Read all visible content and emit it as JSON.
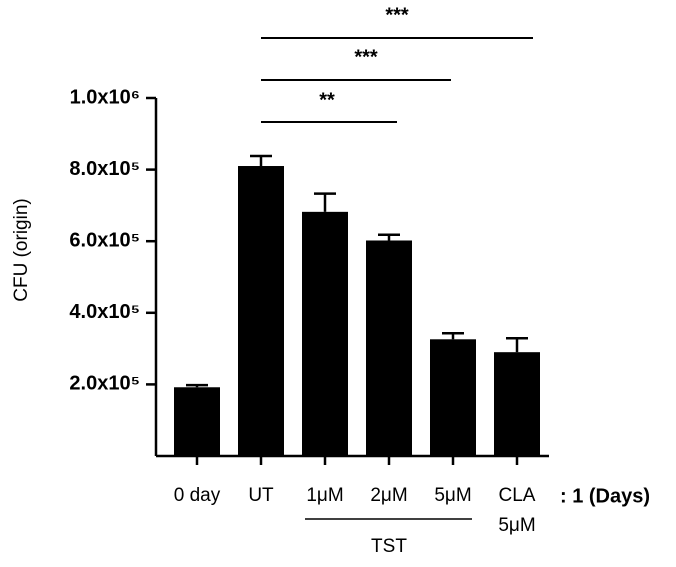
{
  "chart_data": {
    "type": "bar",
    "y_label": "CFU (origin)",
    "categories": [
      "0 day",
      "UT",
      "1μM",
      "2μM",
      "5μM",
      "CLA 5μM"
    ],
    "values": [
      192000,
      810000,
      682000,
      602000,
      326000,
      290000
    ],
    "errors": [
      6000,
      28000,
      51000,
      16000,
      17000,
      39000
    ],
    "color": "#000000",
    "ylim": [
      0,
      1000000
    ],
    "yticks": [
      {
        "value": 200000,
        "label": "2.0x10⁵"
      },
      {
        "value": 400000,
        "label": "4.0x10⁵"
      },
      {
        "value": 600000,
        "label": "6.0x10⁵"
      },
      {
        "value": 800000,
        "label": "8.0x10⁵"
      },
      {
        "value": 1000000,
        "label": "1.0x10⁶"
      }
    ],
    "group_label": "TST",
    "time_label": ": 1 (Days)",
    "significance": [
      "***",
      "***",
      "**"
    ]
  }
}
